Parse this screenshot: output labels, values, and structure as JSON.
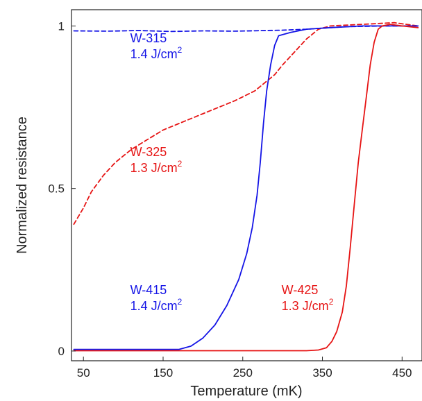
{
  "chart_data": {
    "type": "line",
    "xlabel": "Temperature (mK)",
    "ylabel": "Normalized resistance",
    "xlim": [
      35,
      475
    ],
    "ylim": [
      -0.03,
      1.05
    ],
    "xticks": [
      50,
      150,
      250,
      350,
      450
    ],
    "xtick_labels": [
      "50",
      "150",
      "250",
      "350",
      "450"
    ],
    "yticks": [
      0,
      0.5,
      1
    ],
    "ytick_labels": [
      "0",
      "0.5",
      "1"
    ],
    "grid": false,
    "legend": "none",
    "series": [
      {
        "name": "W-315",
        "color": "#1414e6",
        "style": "dashed",
        "x": [
          38,
          80,
          120,
          160,
          200,
          240,
          280,
          300,
          330,
          380,
          430,
          470
        ],
        "y": [
          0.985,
          0.984,
          0.986,
          0.983,
          0.985,
          0.984,
          0.986,
          0.987,
          0.99,
          0.998,
          1.0,
          1.0
        ]
      },
      {
        "name": "W-325",
        "color": "#e61414",
        "style": "dashed",
        "x": [
          38,
          50,
          60,
          75,
          90,
          110,
          130,
          150,
          180,
          210,
          240,
          265,
          280,
          290,
          300,
          315,
          330,
          345,
          360,
          400,
          440,
          470
        ],
        "y": [
          0.39,
          0.44,
          0.49,
          0.54,
          0.58,
          0.62,
          0.65,
          0.68,
          0.71,
          0.74,
          0.77,
          0.8,
          0.83,
          0.85,
          0.88,
          0.92,
          0.96,
          0.99,
          1.0,
          1.005,
          1.01,
          1.0
        ]
      },
      {
        "name": "W-415",
        "color": "#1414e6",
        "style": "solid",
        "x": [
          38,
          100,
          170,
          185,
          200,
          215,
          230,
          245,
          255,
          262,
          268,
          272,
          276,
          280,
          285,
          290,
          295,
          310,
          330,
          360,
          400,
          440,
          470
        ],
        "y": [
          0.005,
          0.005,
          0.005,
          0.015,
          0.04,
          0.08,
          0.14,
          0.22,
          0.3,
          0.38,
          0.48,
          0.58,
          0.7,
          0.8,
          0.88,
          0.94,
          0.97,
          0.98,
          0.99,
          0.995,
          1.0,
          1.0,
          1.0
        ]
      },
      {
        "name": "W-425",
        "color": "#e61414",
        "style": "solid",
        "x": [
          38,
          150,
          250,
          330,
          345,
          355,
          362,
          368,
          375,
          380,
          385,
          390,
          395,
          400,
          405,
          410,
          415,
          420,
          425,
          435,
          450,
          470
        ],
        "y": [
          0.001,
          0.001,
          0.001,
          0.001,
          0.003,
          0.01,
          0.03,
          0.06,
          0.12,
          0.2,
          0.32,
          0.45,
          0.58,
          0.68,
          0.78,
          0.88,
          0.95,
          0.99,
          1.0,
          1.005,
          1.0,
          0.995
        ]
      }
    ],
    "annotations": [
      {
        "sample": "W-315",
        "energy": "1.4 J/cm",
        "sup": "2",
        "color": "#1414e6",
        "x": 100,
        "y": 0.95
      },
      {
        "sample": "W-325",
        "energy": "1.3 J/cm",
        "sup": "2",
        "color": "#e61414",
        "x": 100,
        "y": 0.6
      },
      {
        "sample": "W-415",
        "energy": "1.4 J/cm",
        "sup": "2",
        "color": "#1414e6",
        "x": 100,
        "y": 0.175
      },
      {
        "sample": "W-425",
        "energy": "1.3 J/cm",
        "sup": "2",
        "color": "#e61414",
        "x": 290,
        "y": 0.175
      }
    ]
  }
}
